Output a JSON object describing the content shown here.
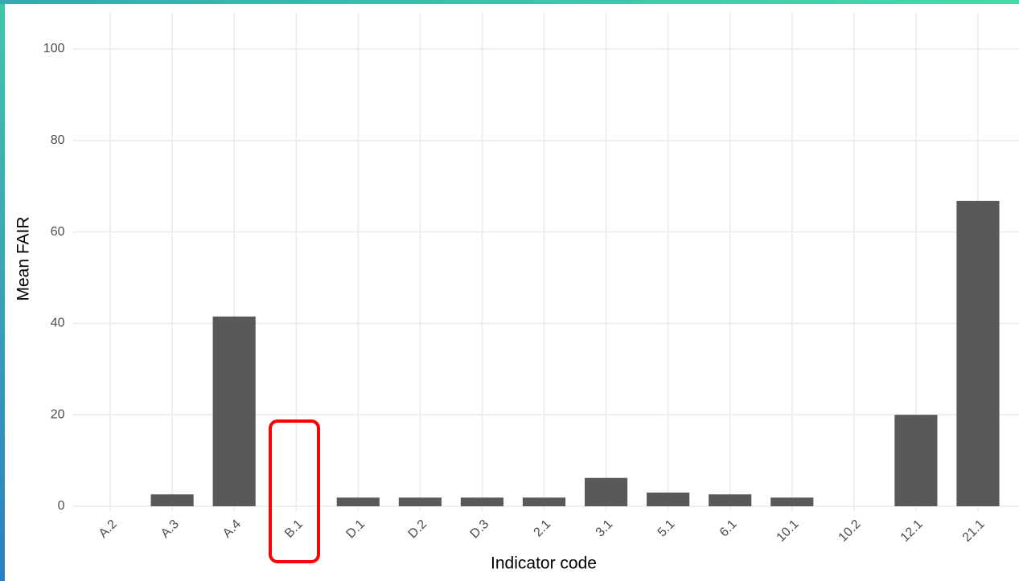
{
  "chart_data": {
    "type": "bar",
    "x_label": "Indicator code",
    "y_label": "Mean FAIR",
    "categories": [
      "A.2",
      "A.3",
      "A.4",
      "B.1",
      "D.1",
      "D.2",
      "D.3",
      "2.1",
      "3.1",
      "5.1",
      "6.1",
      "10.1",
      "10.2",
      "12.1",
      "21.1"
    ],
    "values": [
      0,
      2.6,
      41.5,
      0,
      1.9,
      1.9,
      1.9,
      1.9,
      6.2,
      3,
      2.6,
      1.9,
      0,
      20,
      66.8
    ],
    "color": "#595959",
    "ylim": [
      0,
      100
    ],
    "yticks": [
      0,
      20,
      40,
      60,
      80,
      100
    ],
    "grid": true
  }
}
